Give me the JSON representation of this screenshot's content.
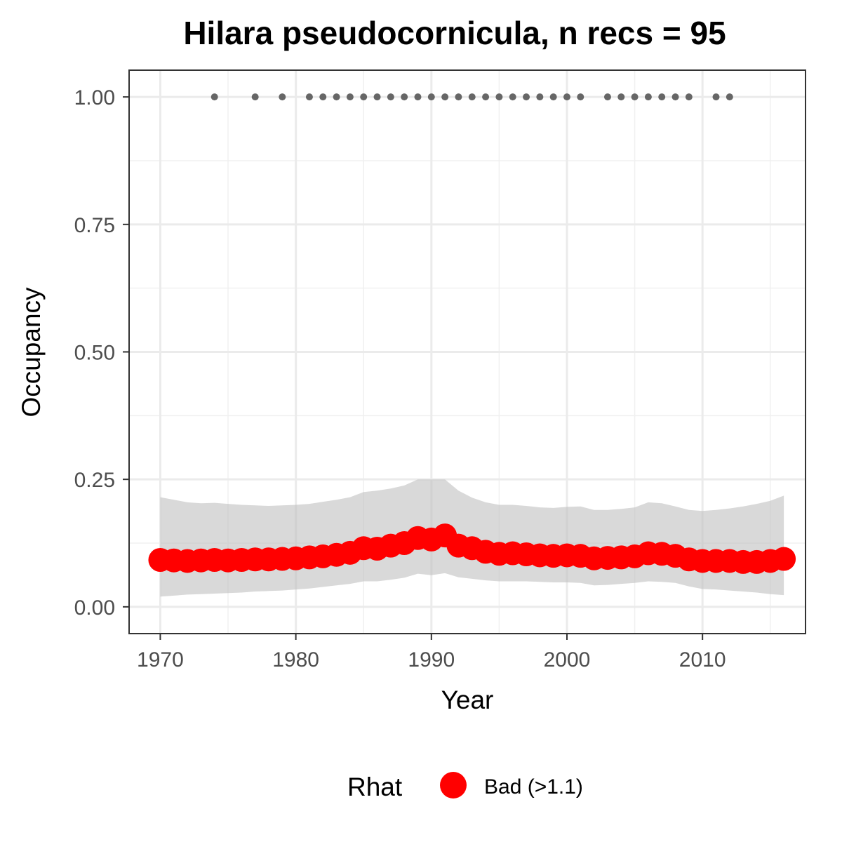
{
  "chart_data": {
    "type": "line",
    "title": "Hilara pseudocornicula, n recs = 95",
    "xlabel": "Year",
    "ylabel": "Occupancy",
    "xlim": [
      1967.7,
      2017.6
    ],
    "ylim": [
      -0.0525,
      1.0525
    ],
    "x_ticks": [
      1970,
      1980,
      1990,
      2000,
      2010
    ],
    "x_tick_labels": [
      "1970",
      "1980",
      "1990",
      "2000",
      "2010"
    ],
    "x_minor_breaks": [
      1975,
      1985,
      1995,
      2005,
      2015
    ],
    "y_ticks": [
      0,
      0.25,
      0.5,
      0.75,
      1.0
    ],
    "y_tick_labels": [
      "0.00",
      "0.25",
      "0.50",
      "0.75",
      "1.00"
    ],
    "y_minor_breaks": [
      0.125,
      0.375,
      0.625,
      0.875
    ],
    "grid": true,
    "legend": {
      "title": "Rhat",
      "position": "bottom",
      "entries": [
        {
          "label": "Bad (>1.1)",
          "color": "#ff0000"
        }
      ]
    },
    "colors": {
      "estimate": "#ff0000",
      "ribbon": "#bfbfbf",
      "records": "#666666"
    },
    "series": [
      {
        "name": "Bad (>1.1)",
        "x": [
          1970,
          1971,
          1972,
          1973,
          1974,
          1975,
          1976,
          1977,
          1978,
          1979,
          1980,
          1981,
          1982,
          1983,
          1984,
          1985,
          1986,
          1987,
          1988,
          1989,
          1990,
          1991,
          1992,
          1993,
          1994,
          1995,
          1996,
          1997,
          1998,
          1999,
          2000,
          2001,
          2002,
          2003,
          2004,
          2005,
          2006,
          2007,
          2008,
          2009,
          2010,
          2011,
          2012,
          2013,
          2014,
          2015,
          2016
        ],
        "y": [
          0.092,
          0.091,
          0.09,
          0.091,
          0.092,
          0.091,
          0.092,
          0.093,
          0.093,
          0.094,
          0.095,
          0.097,
          0.099,
          0.102,
          0.106,
          0.115,
          0.114,
          0.12,
          0.125,
          0.135,
          0.132,
          0.14,
          0.12,
          0.115,
          0.108,
          0.104,
          0.105,
          0.103,
          0.101,
          0.1,
          0.101,
          0.1,
          0.095,
          0.096,
          0.097,
          0.099,
          0.105,
          0.104,
          0.1,
          0.093,
          0.09,
          0.09,
          0.09,
          0.088,
          0.088,
          0.09,
          0.094
        ],
        "lower": [
          0.02,
          0.022,
          0.024,
          0.025,
          0.026,
          0.027,
          0.028,
          0.03,
          0.031,
          0.032,
          0.034,
          0.036,
          0.039,
          0.042,
          0.045,
          0.05,
          0.05,
          0.053,
          0.057,
          0.065,
          0.062,
          0.066,
          0.058,
          0.055,
          0.052,
          0.05,
          0.05,
          0.05,
          0.049,
          0.048,
          0.048,
          0.047,
          0.042,
          0.043,
          0.045,
          0.047,
          0.05,
          0.049,
          0.047,
          0.04,
          0.035,
          0.034,
          0.032,
          0.03,
          0.028,
          0.025,
          0.023
        ],
        "upper": [
          0.215,
          0.21,
          0.205,
          0.203,
          0.204,
          0.202,
          0.2,
          0.199,
          0.198,
          0.199,
          0.2,
          0.202,
          0.206,
          0.21,
          0.215,
          0.225,
          0.228,
          0.232,
          0.238,
          0.25,
          0.25,
          0.25,
          0.228,
          0.214,
          0.205,
          0.2,
          0.2,
          0.198,
          0.195,
          0.194,
          0.196,
          0.197,
          0.19,
          0.19,
          0.192,
          0.195,
          0.205,
          0.203,
          0.197,
          0.19,
          0.188,
          0.19,
          0.193,
          0.197,
          0.202,
          0.208,
          0.218
        ]
      }
    ],
    "records": {
      "y": 1.0,
      "x": [
        1974,
        1977,
        1979,
        1981,
        1982,
        1983,
        1984,
        1985,
        1986,
        1987,
        1988,
        1989,
        1990,
        1991,
        1992,
        1993,
        1994,
        1995,
        1996,
        1997,
        1998,
        1999,
        2000,
        2001,
        2003,
        2004,
        2005,
        2006,
        2007,
        2008,
        2009,
        2011,
        2012
      ]
    }
  }
}
